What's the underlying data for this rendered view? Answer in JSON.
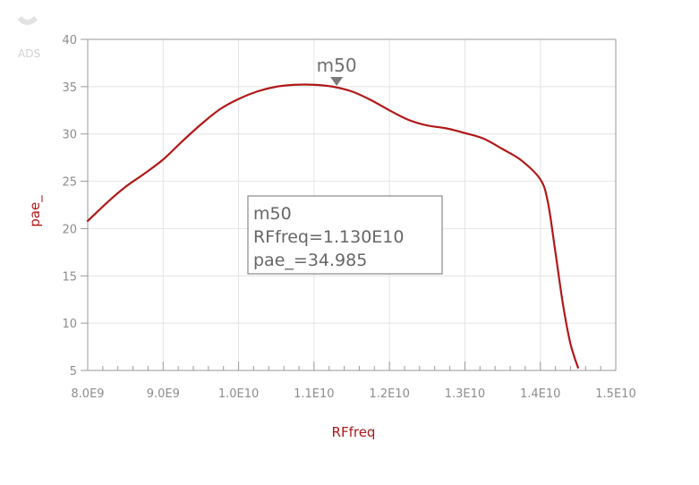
{
  "logo": {
    "text": "ADS"
  },
  "chart_data": {
    "type": "line",
    "title": "",
    "xlabel": "RFfreq",
    "ylabel": "pae_",
    "xlim": [
      8000000000.0,
      15000000000.0
    ],
    "ylim": [
      5,
      40
    ],
    "x_ticks": [
      8000000000.0,
      9000000000.0,
      10000000000.0,
      11000000000.0,
      12000000000.0,
      13000000000.0,
      14000000000.0,
      15000000000.0
    ],
    "x_tick_labels": [
      "8.0E9",
      "9.0E9",
      "1.0E10",
      "1.1E10",
      "1.2E10",
      "1.3E10",
      "1.4E10",
      "1.5E10"
    ],
    "y_ticks": [
      5,
      10,
      15,
      20,
      25,
      30,
      35,
      40
    ],
    "y_tick_labels": [
      "5",
      "10",
      "15",
      "20",
      "25",
      "30",
      "35",
      "40"
    ],
    "grid": true,
    "line_color": "#b01818",
    "series": [
      {
        "x": [
          8000000000.0,
          8250000000.0,
          8500000000.0,
          8750000000.0,
          9000000000.0,
          9250000000.0,
          9500000000.0,
          9750000000.0,
          10000000000.0,
          10250000000.0,
          10500000000.0,
          10750000000.0,
          11000000000.0,
          11250000000.0,
          11500000000.0,
          11750000000.0,
          12000000000.0,
          12250000000.0,
          12500000000.0,
          12750000000.0,
          13000000000.0,
          13250000000.0,
          13500000000.0,
          13750000000.0,
          14000000000.0,
          14100000000.0,
          14200000000.0,
          14300000000.0,
          14400000000.0,
          14500000000.0
        ],
        "y": [
          20.8,
          22.7,
          24.4,
          25.8,
          27.3,
          29.2,
          31.0,
          32.6,
          33.7,
          34.5,
          35.0,
          35.2,
          35.2,
          35.0,
          34.5,
          33.6,
          32.5,
          31.5,
          30.9,
          30.6,
          30.1,
          29.5,
          28.4,
          27.2,
          25.2,
          22.8,
          17.5,
          12.0,
          7.8,
          5.3
        ]
      }
    ],
    "marker": {
      "name": "m50",
      "x": 11300000000.0,
      "y": 34.985,
      "readout_lines": [
        "m50",
        "RFfreq=1.130E10",
        "pae_=34.985"
      ]
    }
  }
}
